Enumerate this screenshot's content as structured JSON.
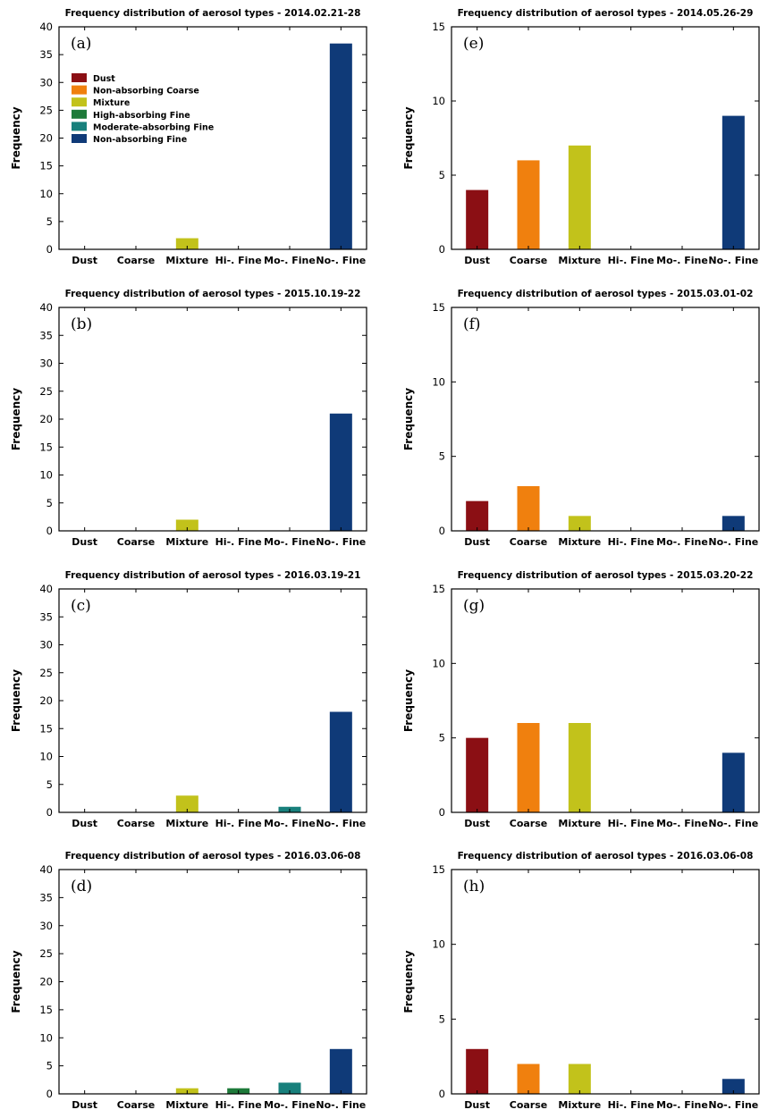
{
  "categories": [
    "Dust",
    "Coarse",
    "Mixture",
    "Hi-. Fine",
    "Mo-. Fine",
    "No-. Fine"
  ],
  "ylabel": "Frequency",
  "colors": {
    "Dust": "#8b0f14",
    "Coarse": "#f0800e",
    "Mixture": "#c2c21b",
    "Hi-. Fine": "#1e7a3a",
    "Mo-. Fine": "#18807c",
    "No-. Fine": "#0f3a78"
  },
  "legend": [
    {
      "label": "Dust",
      "color": "#8b0f14"
    },
    {
      "label": "Non-absorbing Coarse",
      "color": "#f0800e"
    },
    {
      "label": "Mixture",
      "color": "#c2c21b"
    },
    {
      "label": "High-absorbing Fine",
      "color": "#1e7a3a"
    },
    {
      "label": "Moderate-absorbing Fine",
      "color": "#18807c"
    },
    {
      "label": "Non-absorbing Fine",
      "color": "#0f3a78"
    }
  ],
  "chart_data": [
    {
      "id": "a",
      "type": "bar",
      "panel_label": "(a)",
      "title": "Frequency distribution of aerosol types - 2014.02.21-28",
      "ylabel": "Frequency",
      "categories": [
        "Dust",
        "Coarse",
        "Mixture",
        "Hi-. Fine",
        "Mo-. Fine",
        "No-. Fine"
      ],
      "values": [
        0,
        0,
        2,
        0,
        0,
        37
      ],
      "ylim": [
        0,
        40
      ],
      "yticks": [
        0,
        5,
        10,
        15,
        20,
        25,
        30,
        35,
        40
      ],
      "legend": true
    },
    {
      "id": "b",
      "type": "bar",
      "panel_label": "(b)",
      "title": "Frequency distribution of aerosol types - 2015.10.19-22",
      "ylabel": "Frequency",
      "categories": [
        "Dust",
        "Coarse",
        "Mixture",
        "Hi-. Fine",
        "Mo-. Fine",
        "No-. Fine"
      ],
      "values": [
        0,
        0,
        2,
        0,
        0,
        21
      ],
      "ylim": [
        0,
        40
      ],
      "yticks": [
        0,
        5,
        10,
        15,
        20,
        25,
        30,
        35,
        40
      ],
      "legend": false
    },
    {
      "id": "c",
      "type": "bar",
      "panel_label": "(c)",
      "title": "Frequency distribution of aerosol types - 2016.03.19-21",
      "ylabel": "Frequency",
      "categories": [
        "Dust",
        "Coarse",
        "Mixture",
        "Hi-. Fine",
        "Mo-. Fine",
        "No-. Fine"
      ],
      "values": [
        0,
        0,
        3,
        0,
        1,
        18
      ],
      "ylim": [
        0,
        40
      ],
      "yticks": [
        0,
        5,
        10,
        15,
        20,
        25,
        30,
        35,
        40
      ],
      "legend": false
    },
    {
      "id": "d",
      "type": "bar",
      "panel_label": "(d)",
      "title": "Frequency distribution of aerosol types - 2016.03.06-08",
      "ylabel": "Frequency",
      "categories": [
        "Dust",
        "Coarse",
        "Mixture",
        "Hi-. Fine",
        "Mo-. Fine",
        "No-. Fine"
      ],
      "values": [
        0,
        0,
        1,
        1,
        2,
        8
      ],
      "ylim": [
        0,
        40
      ],
      "yticks": [
        0,
        5,
        10,
        15,
        20,
        25,
        30,
        35,
        40
      ],
      "legend": false
    },
    {
      "id": "e",
      "type": "bar",
      "panel_label": "(e)",
      "title": "Frequency distribution of aerosol types - 2014.05.26-29",
      "ylabel": "Frequency",
      "categories": [
        "Dust",
        "Coarse",
        "Mixture",
        "Hi-. Fine",
        "Mo-. Fine",
        "No-. Fine"
      ],
      "values": [
        4,
        6,
        7,
        0,
        0,
        9
      ],
      "ylim": [
        0,
        15
      ],
      "yticks": [
        0,
        5,
        10,
        15
      ],
      "legend": false
    },
    {
      "id": "f",
      "type": "bar",
      "panel_label": "(f)",
      "title": "Frequency distribution of aerosol types - 2015.03.01-02",
      "ylabel": "Frequency",
      "categories": [
        "Dust",
        "Coarse",
        "Mixture",
        "Hi-. Fine",
        "Mo-. Fine",
        "No-. Fine"
      ],
      "values": [
        2,
        3,
        1,
        0,
        0,
        1
      ],
      "ylim": [
        0,
        15
      ],
      "yticks": [
        0,
        5,
        10,
        15
      ],
      "legend": false
    },
    {
      "id": "g",
      "type": "bar",
      "panel_label": "(g)",
      "title": "Frequency distribution of aerosol types - 2015.03.20-22",
      "ylabel": "Frequency",
      "categories": [
        "Dust",
        "Coarse",
        "Mixture",
        "Hi-. Fine",
        "Mo-. Fine",
        "No-. Fine"
      ],
      "values": [
        5,
        6,
        6,
        0,
        0,
        4
      ],
      "ylim": [
        0,
        15
      ],
      "yticks": [
        0,
        5,
        10,
        15
      ],
      "legend": false
    },
    {
      "id": "h",
      "type": "bar",
      "panel_label": "(h)",
      "title": "Frequency distribution of aerosol types - 2016.03.06-08",
      "ylabel": "Frequency",
      "categories": [
        "Dust",
        "Coarse",
        "Mixture",
        "Hi-. Fine",
        "Mo-. Fine",
        "No-. Fine"
      ],
      "values": [
        3,
        2,
        2,
        0,
        0,
        1
      ],
      "ylim": [
        0,
        15
      ],
      "yticks": [
        0,
        5,
        10,
        15
      ],
      "legend": false
    }
  ]
}
